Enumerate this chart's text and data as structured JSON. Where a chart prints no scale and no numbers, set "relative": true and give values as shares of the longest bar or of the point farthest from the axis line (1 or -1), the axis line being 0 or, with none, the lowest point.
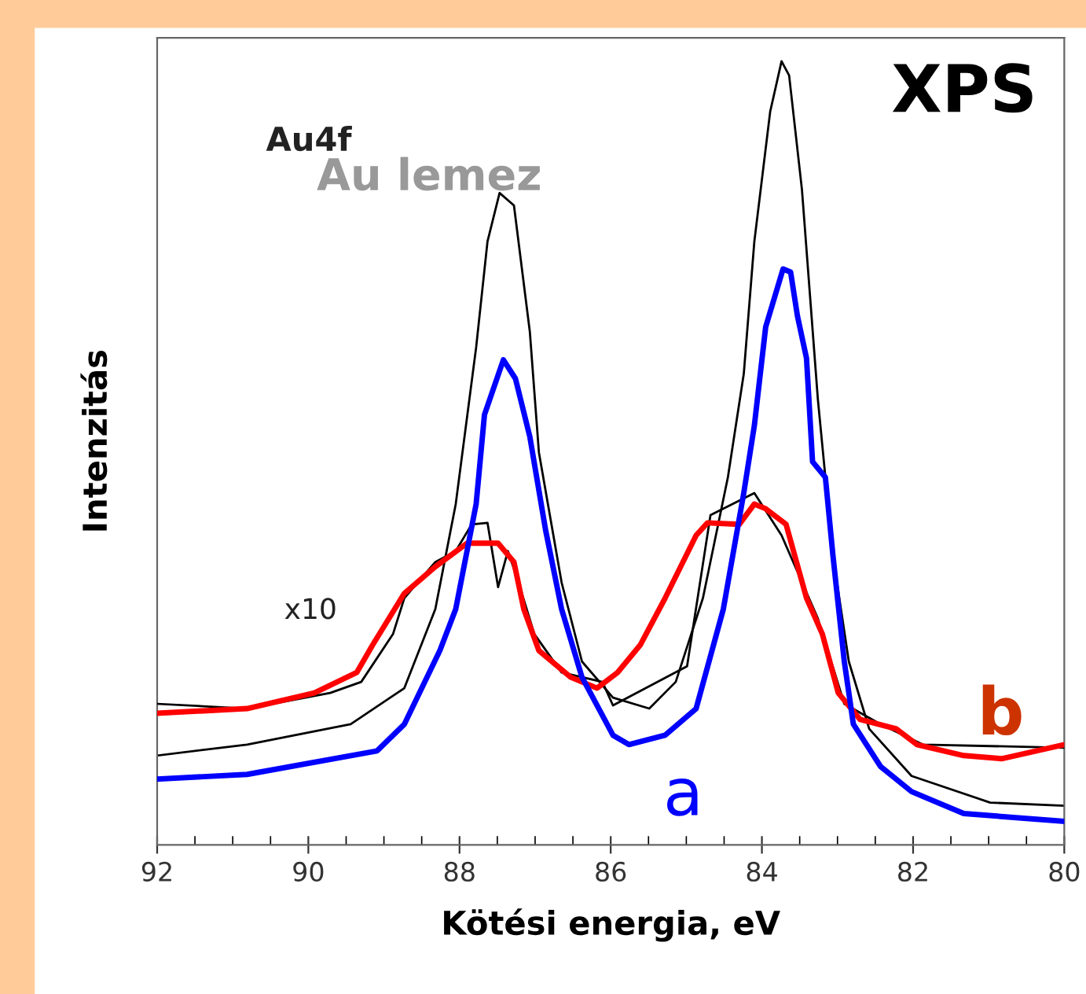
{
  "chart_data": {
    "type": "line",
    "title": "XPS",
    "xlabel": "Kötési energia, eV",
    "ylabel": "Intenzitás",
    "relative": true,
    "xlim": [
      92,
      80
    ],
    "xticks": [
      92,
      90,
      88,
      86,
      84,
      82,
      80
    ],
    "grid": false,
    "legend": false,
    "marker": "none",
    "line_style": "solid",
    "annotations": [
      "Au4f",
      "x10"
    ],
    "series": [
      {
        "name": "Au lemez",
        "color": "#000000",
        "x": [
          92,
          90.81,
          89.44,
          88.73,
          88.32,
          88.05,
          87.78,
          87.63,
          87.47,
          87.28,
          87.07,
          86.95,
          86.65,
          86.38,
          85.97,
          85.49,
          85.14,
          84.78,
          84.45,
          84.24,
          84.1,
          83.89,
          83.74,
          83.64,
          83.47,
          83.26,
          83.06,
          82.85,
          82.58,
          82.02,
          80.98,
          80
        ],
        "values": [
          0.114,
          0.128,
          0.154,
          0.2,
          0.301,
          0.435,
          0.635,
          0.77,
          0.832,
          0.816,
          0.655,
          0.501,
          0.335,
          0.234,
          0.188,
          0.174,
          0.208,
          0.315,
          0.469,
          0.601,
          0.77,
          0.936,
          1,
          0.982,
          0.836,
          0.569,
          0.369,
          0.234,
          0.148,
          0.088,
          0.054,
          0.05
        ]
      },
      {
        "color": "#000000",
        "x": [
          92,
          90.81,
          89.71,
          89.3,
          88.88,
          88.73,
          88.32,
          88.05,
          87.84,
          87.63,
          87.49,
          87.36,
          87.22,
          87.01,
          86.65,
          86.11,
          85.97,
          84.99,
          84.68,
          84.1,
          83.74,
          83.26,
          82.91,
          82.43,
          81.87,
          80
        ],
        "values": [
          0.18,
          0.174,
          0.194,
          0.208,
          0.269,
          0.315,
          0.361,
          0.375,
          0.409,
          0.411,
          0.329,
          0.375,
          0.335,
          0.269,
          0.22,
          0.208,
          0.178,
          0.228,
          0.421,
          0.449,
          0.395,
          0.289,
          0.18,
          0.154,
          0.128,
          0.124
        ]
      },
      {
        "name": "b",
        "color": "#ff0000",
        "x": [
          92,
          90.81,
          89.92,
          89.36,
          89.15,
          88.73,
          88.32,
          87.9,
          87.49,
          87.28,
          87.15,
          86.95,
          86.53,
          86.18,
          85.91,
          85.61,
          85.28,
          84.87,
          84.72,
          84.3,
          84.1,
          83.95,
          83.68,
          83.41,
          83.2,
          82.99,
          82.7,
          82.22,
          81.95,
          81.33,
          80.83,
          80
        ],
        "values": [
          0.168,
          0.174,
          0.194,
          0.22,
          0.255,
          0.321,
          0.355,
          0.385,
          0.385,
          0.361,
          0.301,
          0.248,
          0.214,
          0.2,
          0.22,
          0.255,
          0.315,
          0.395,
          0.411,
          0.409,
          0.435,
          0.429,
          0.409,
          0.315,
          0.269,
          0.194,
          0.16,
          0.148,
          0.128,
          0.114,
          0.11,
          0.128
        ]
      },
      {
        "name": "a",
        "color": "#0000ff",
        "x": [
          92,
          90.81,
          89.09,
          88.73,
          88.26,
          88.05,
          87.78,
          87.67,
          87.42,
          87.26,
          87.07,
          86.86,
          86.65,
          86.38,
          85.97,
          85.76,
          85.28,
          84.87,
          84.51,
          84.24,
          84.1,
          83.95,
          83.72,
          83.62,
          83.53,
          83.41,
          83.33,
          83.16,
          83.06,
          82.91,
          82.79,
          82.43,
          82.02,
          81.33,
          80
        ],
        "values": [
          0.084,
          0.09,
          0.12,
          0.154,
          0.248,
          0.301,
          0.435,
          0.549,
          0.619,
          0.595,
          0.521,
          0.401,
          0.301,
          0.214,
          0.14,
          0.128,
          0.14,
          0.174,
          0.301,
          0.449,
          0.535,
          0.661,
          0.735,
          0.731,
          0.675,
          0.621,
          0.489,
          0.469,
          0.369,
          0.234,
          0.154,
          0.1,
          0.068,
          0.04,
          0.03
        ]
      }
    ]
  }
}
